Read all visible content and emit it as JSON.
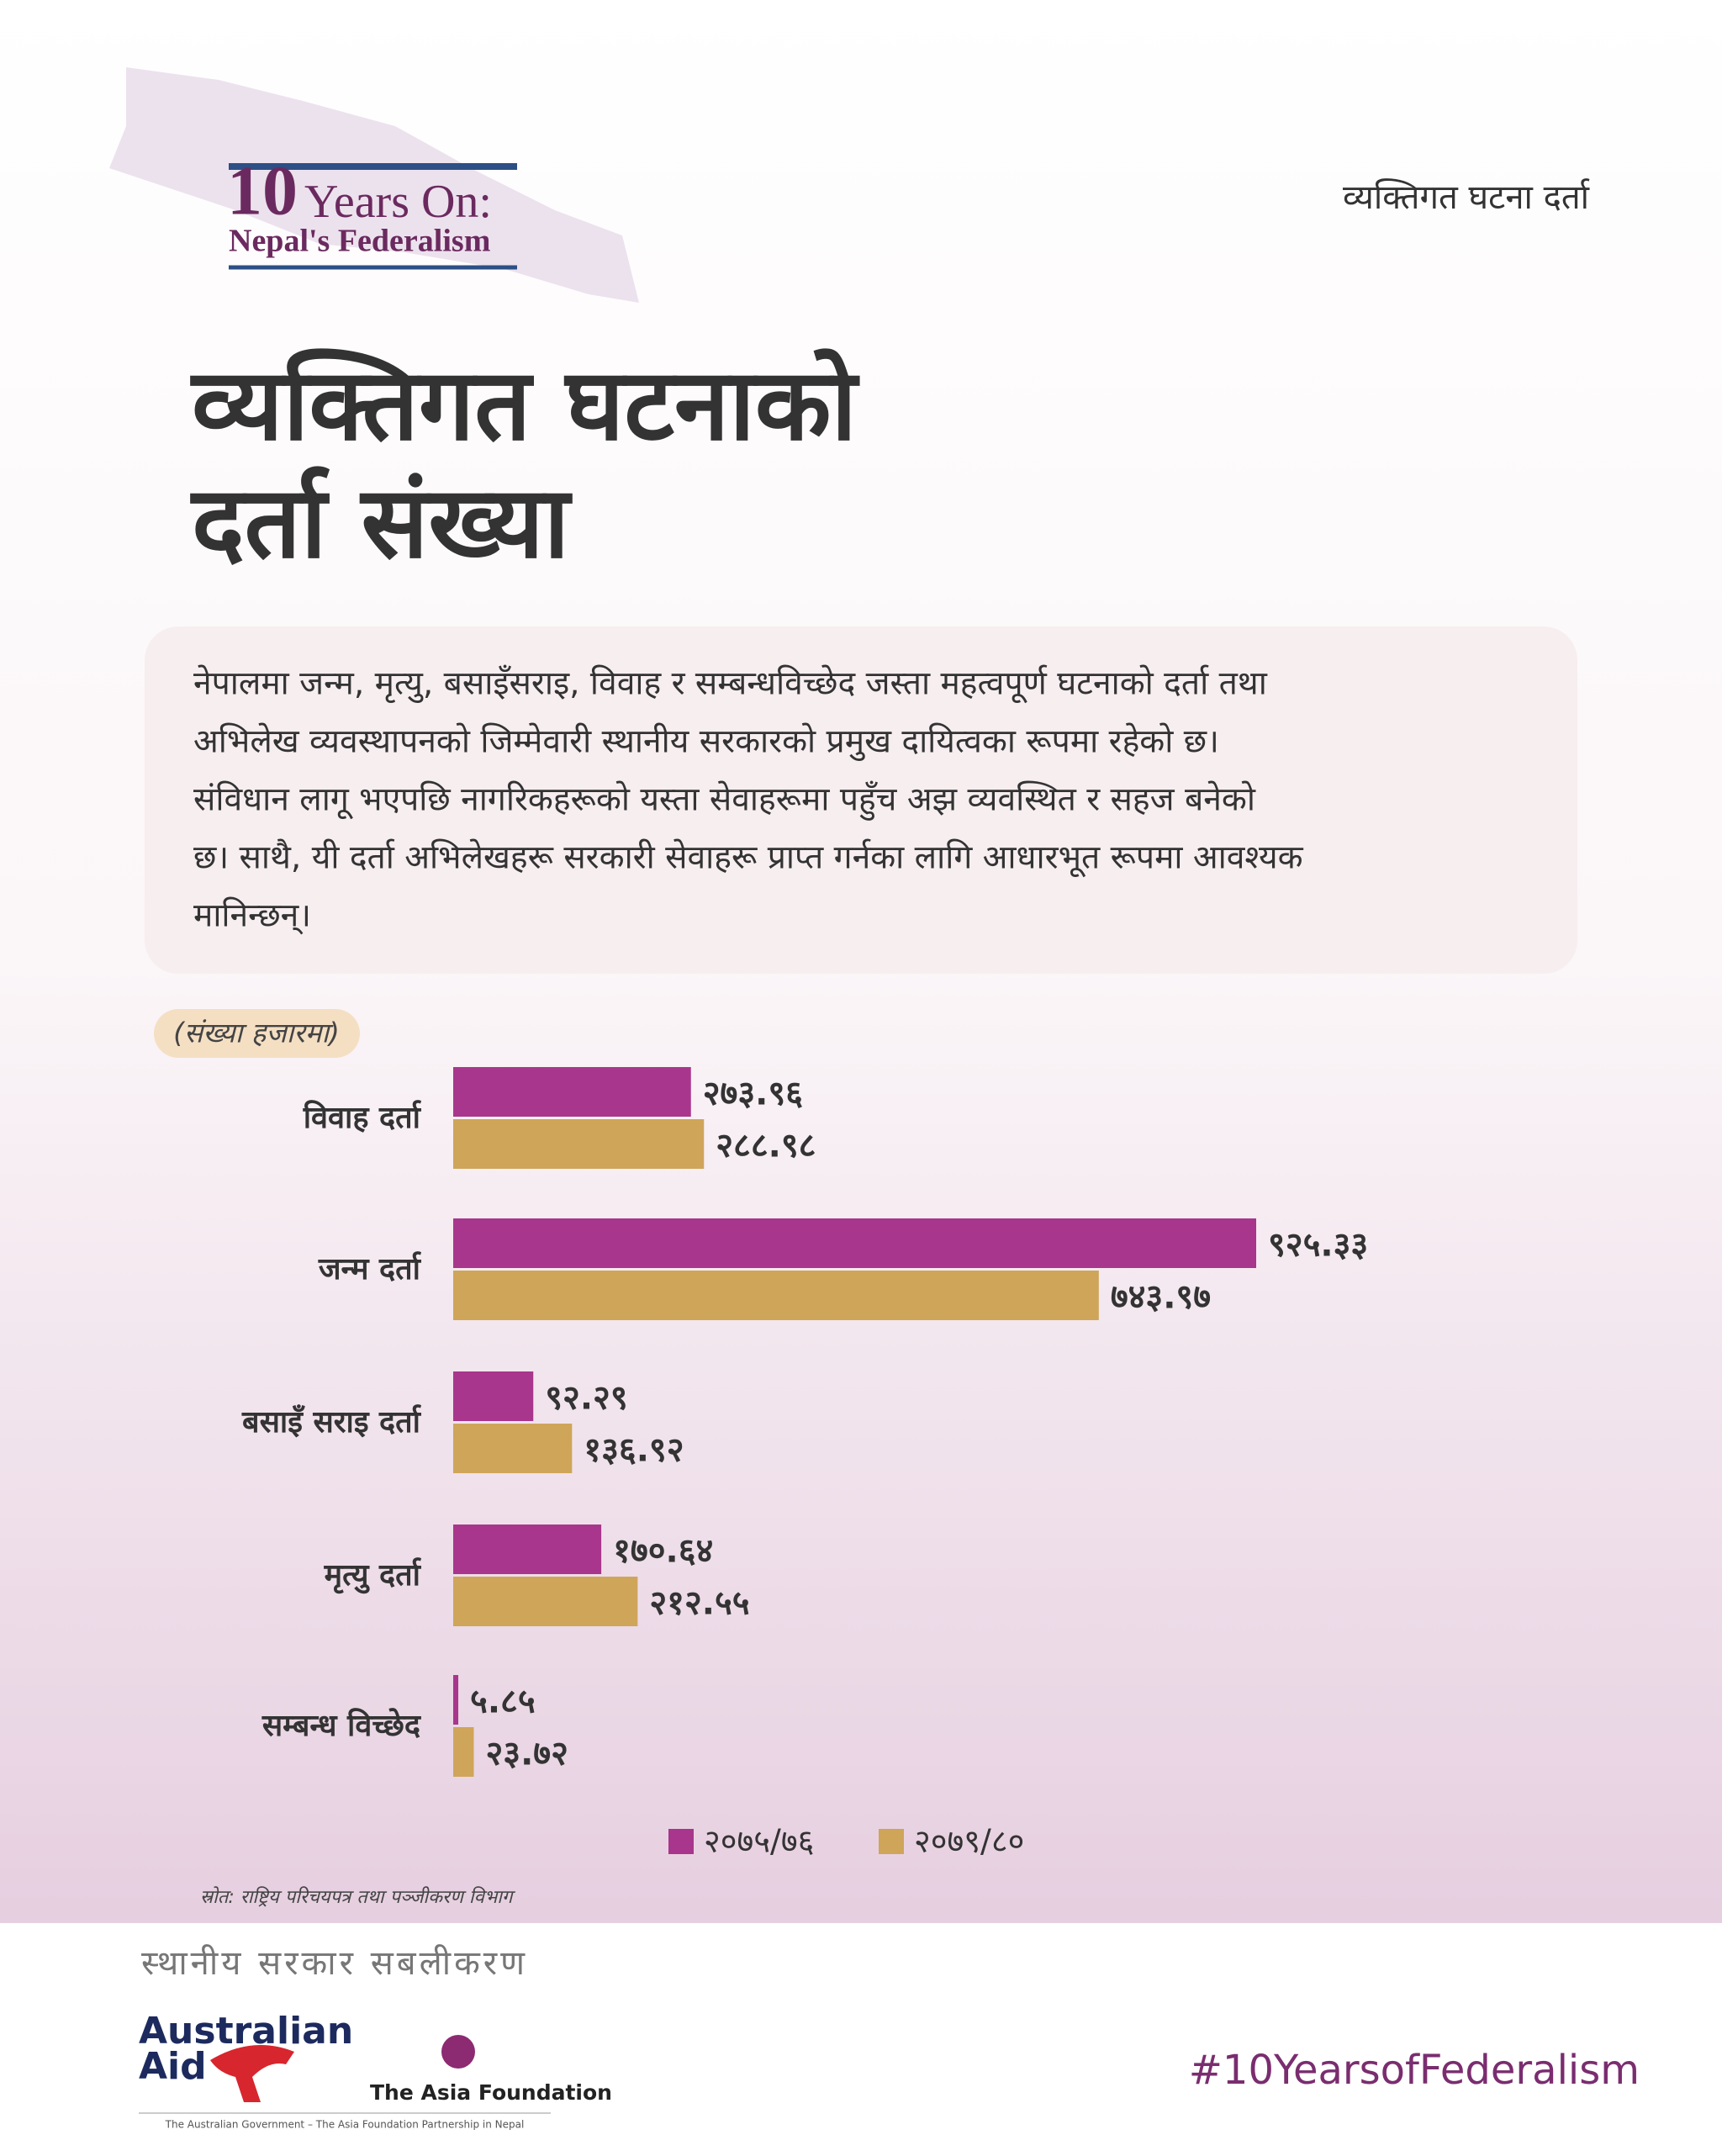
{
  "header": {
    "logo_number": "10",
    "logo_title": "Years On:",
    "logo_subtitle": "Nepal's Federalism",
    "topic": "व्यक्तिगत घटना दर्ता"
  },
  "title_lines": [
    "व्यक्तिगत घटनाको",
    "दर्ता संख्या"
  ],
  "intro_lines": [
    "नेपालमा जन्म, मृत्यु, बसाइँसराइ, विवाह र सम्बन्धविच्छेद जस्ता महत्वपूर्ण घटनाको दर्ता तथा",
    "अभिलेख व्यवस्थापनको जिम्मेवारी स्थानीय सरकारको प्रमुख दायित्वका रूपमा रहेको छ।",
    "संविधान लागू भएपछि नागरिकहरूको यस्ता सेवाहरूमा पहुँच अझ व्यवस्थित र सहज बनेको",
    "छ। साथै, यी दर्ता अभिलेखहरू सरकारी सेवाहरू प्राप्त गर्नका लागि आधारभूत रूपमा आवश्यक",
    "मानिन्छन्।"
  ],
  "chart_data": {
    "type": "bar",
    "orientation": "horizontal",
    "unit_note": "(संख्या हजारमा)",
    "categories": [
      "विवाह दर्ता",
      "जन्म दर्ता",
      "बसाइँ सराइ दर्ता",
      "मृत्यु दर्ता",
      "सम्बन्ध विच्छेद"
    ],
    "series": [
      {
        "name": "२०७५/७६",
        "color": "#a8368c",
        "values": [
          273.96,
          925.33,
          92.29,
          170.64,
          5.85
        ],
        "value_labels": [
          "२७३.९६",
          "९२५.३३",
          "९२.२९",
          "१७०.६४",
          "५.८५"
        ]
      },
      {
        "name": "२०७९/८०",
        "color": "#cfa55a",
        "values": [
          288.98,
          743.97,
          136.92,
          212.55,
          23.72
        ],
        "value_labels": [
          "२८८.९८",
          "७४३.९७",
          "१३६.९२",
          "२१२.५५",
          "२३.७२"
        ]
      }
    ],
    "source": "स्रोत: राष्ट्रिय परिचयपत्र तथा पञ्जीकरण विभाग"
  },
  "footer": {
    "program": "स्थानीय सरकार सबलीकरण",
    "aid_line1": "Australian",
    "aid_line2": "Aid",
    "foundation": "The Asia Foundation",
    "partnership": "The Australian Government – The Asia Foundation Partnership in Nepal",
    "hashtag": "#10YearsofFederalism"
  }
}
